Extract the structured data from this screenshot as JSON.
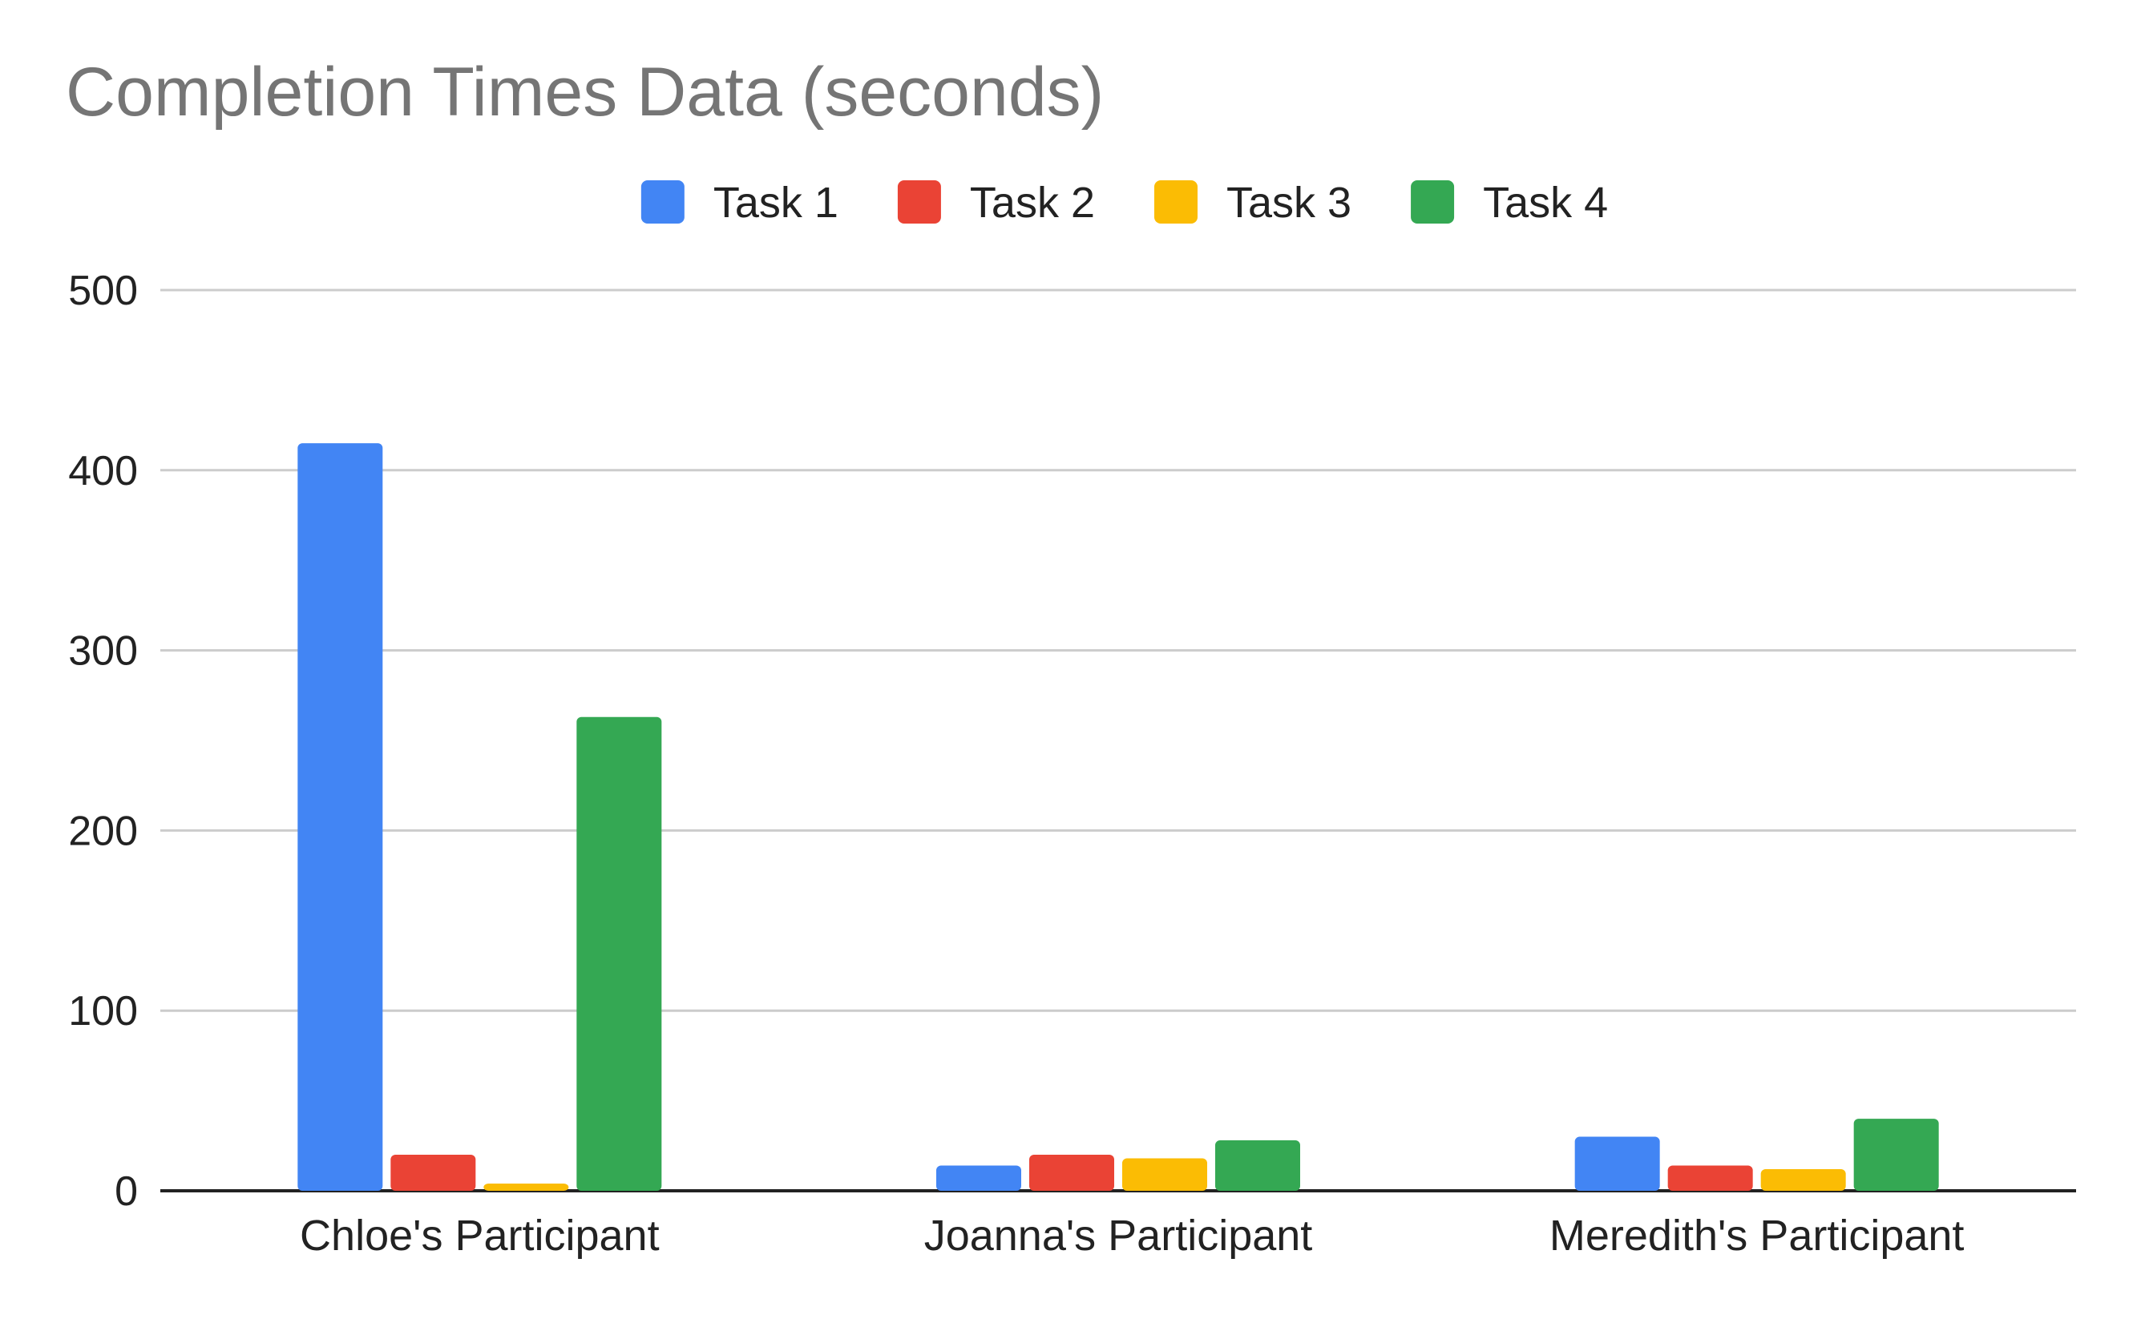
{
  "chart_data": {
    "type": "bar",
    "title": "Completion Times Data (seconds)",
    "xlabel": "",
    "ylabel": "",
    "categories": [
      "Chloe's Participant",
      "Joanna's Participant",
      "Meredith's Participant"
    ],
    "series": [
      {
        "name": "Task 1",
        "color": "#4285F4",
        "values": [
          415,
          14,
          30
        ]
      },
      {
        "name": "Task 2",
        "color": "#EA4335",
        "values": [
          20,
          20,
          14
        ]
      },
      {
        "name": "Task 3",
        "color": "#FBBC04",
        "values": [
          4,
          18,
          12
        ]
      },
      {
        "name": "Task 4",
        "color": "#34A853",
        "values": [
          263,
          28,
          40
        ]
      }
    ],
    "ylim": [
      0,
      500
    ],
    "yticks": [
      0,
      100,
      200,
      300,
      400,
      500
    ],
    "grid": true,
    "legend_position": "top-center"
  }
}
